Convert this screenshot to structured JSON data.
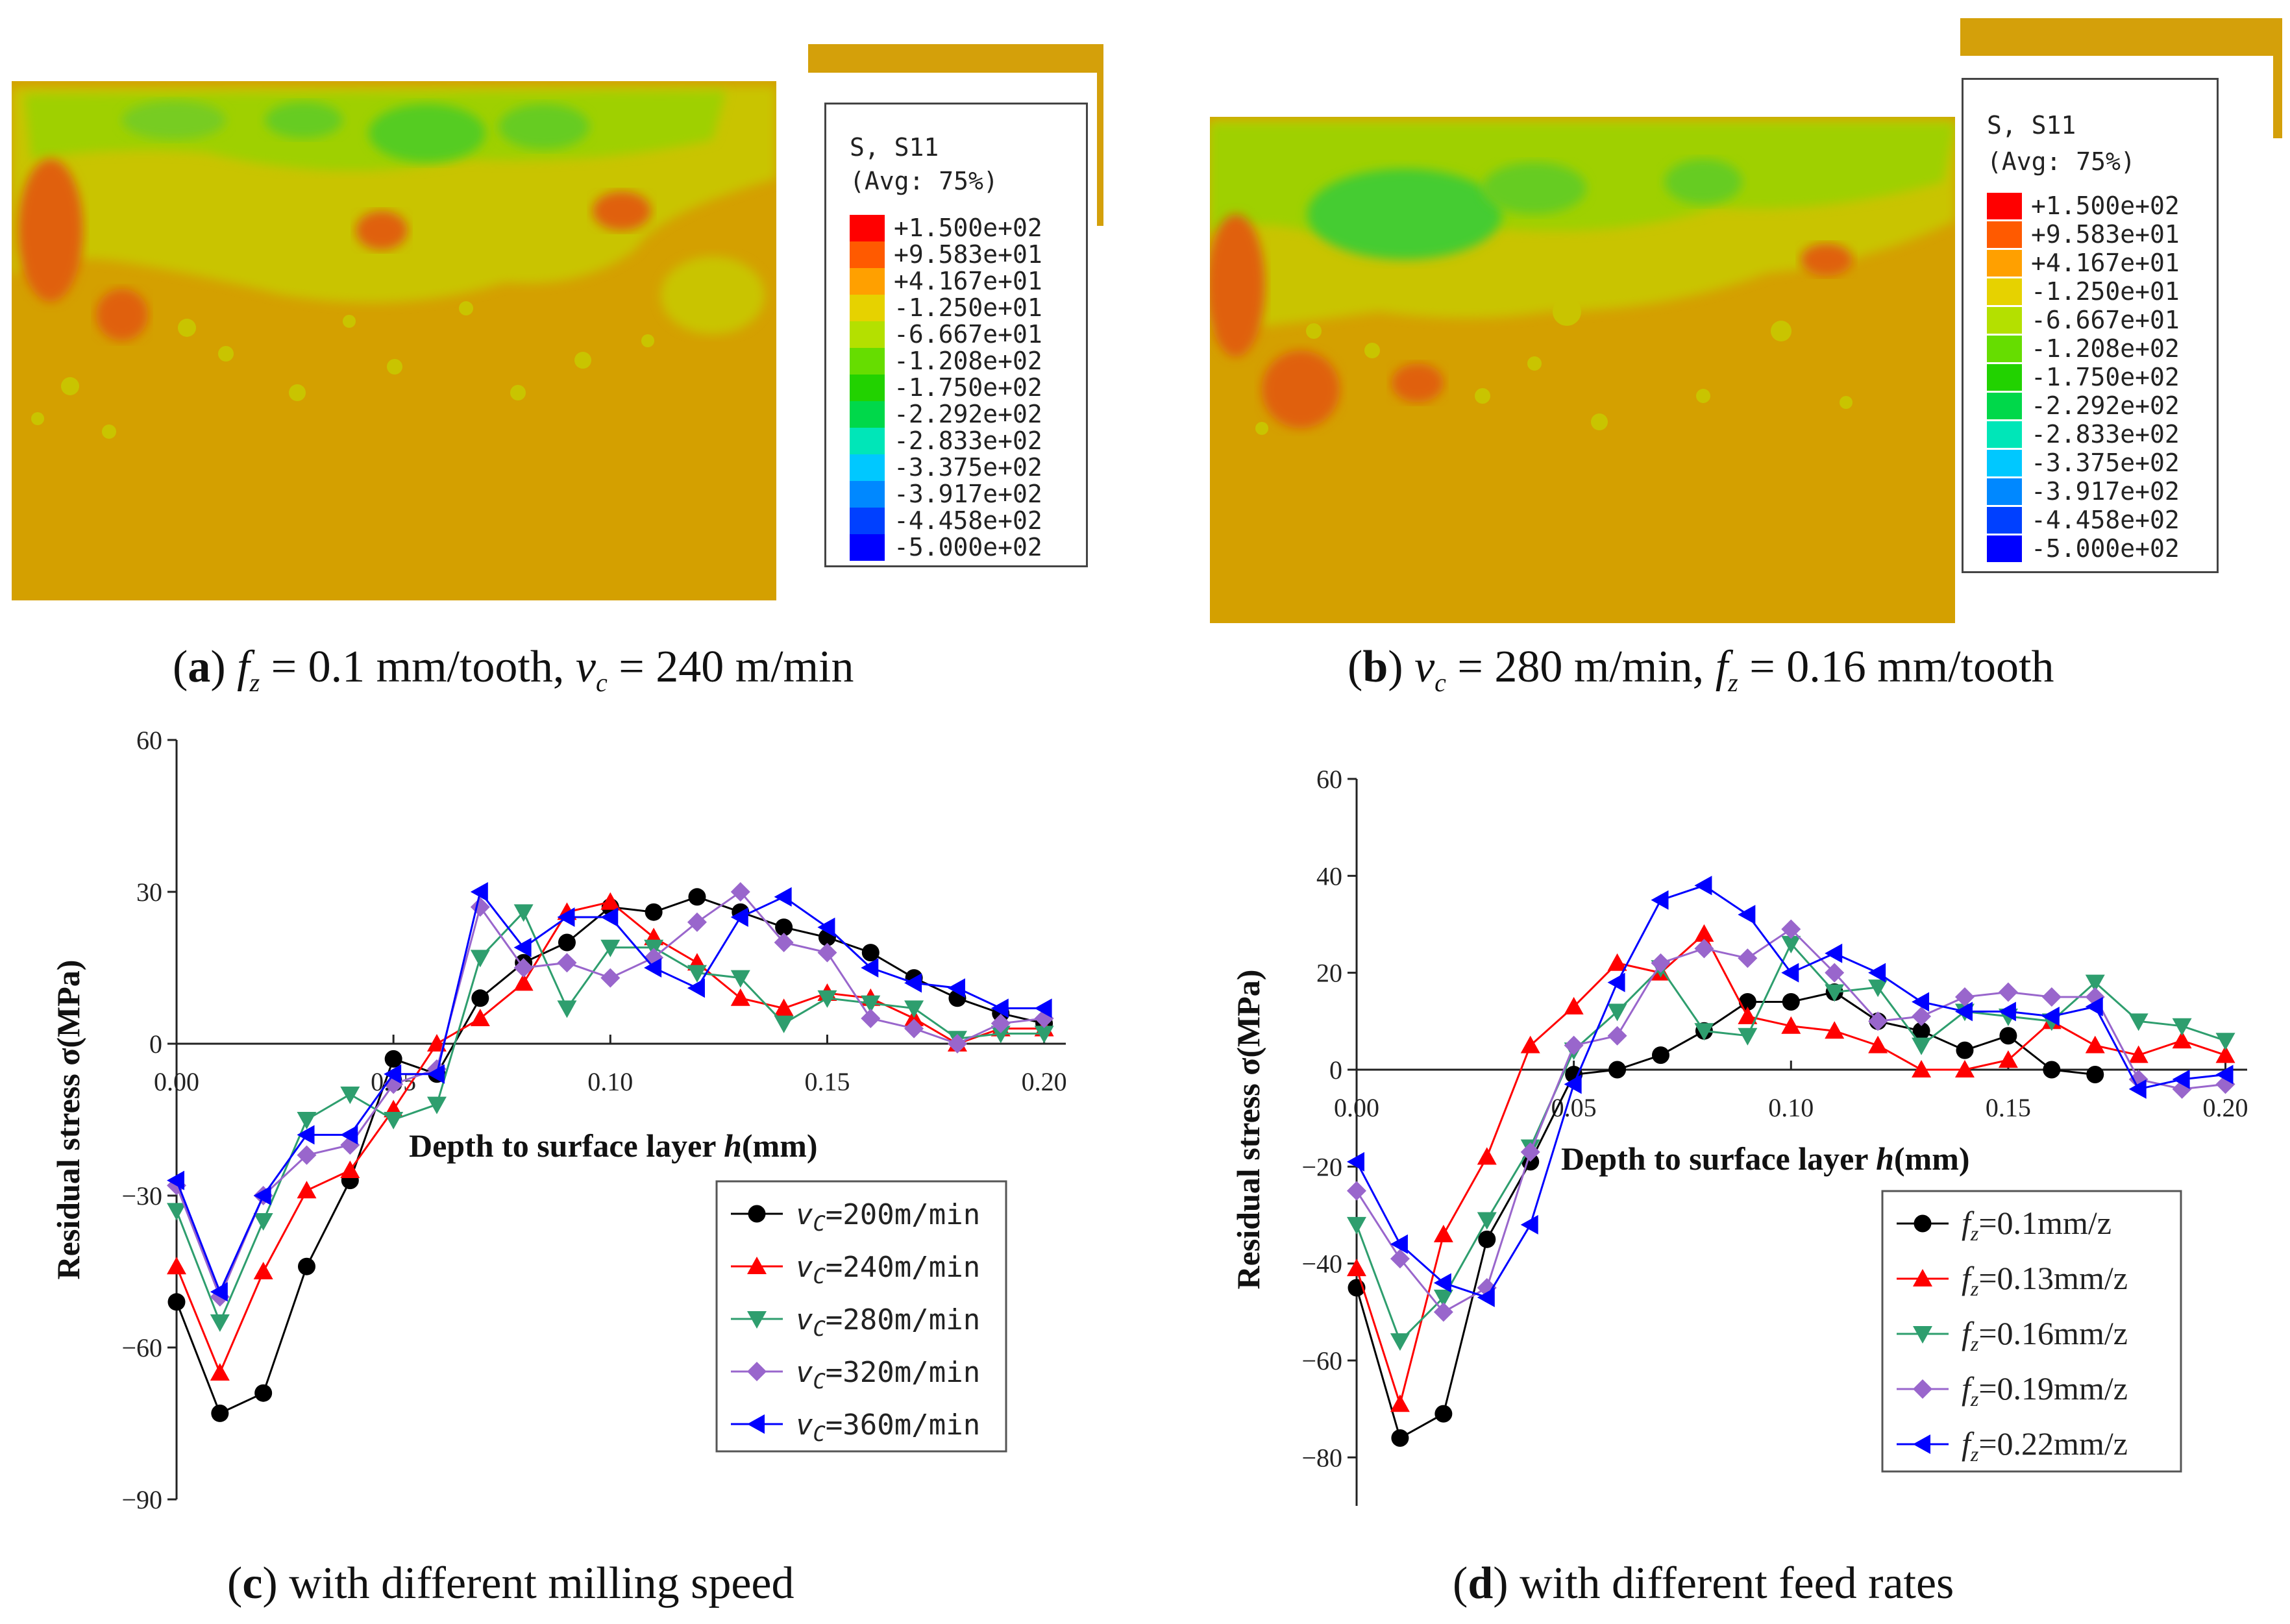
{
  "fem_panels": [
    {
      "id": "a",
      "legend": {
        "title_line1": "S, S11",
        "title_line2": "(Avg: 75%)",
        "levels": [
          "+1.500e+02",
          "+9.583e+01",
          "+4.167e+01",
          "-1.250e+01",
          "-6.667e+01",
          "-1.208e+02",
          "-1.750e+02",
          "-2.292e+02",
          "-2.833e+02",
          "-3.375e+02",
          "-3.917e+02",
          "-4.458e+02",
          "-5.000e+02"
        ]
      },
      "caption": {
        "letter": "a",
        "text_before": " ",
        "f": "f",
        "fsub": "z",
        "text1": " = 0.1 mm/tooth, ",
        "v": "v",
        "vsub": "c",
        "text2": " = 240 m/min"
      }
    },
    {
      "id": "b",
      "legend": {
        "title_line1": "S, S11",
        "title_line2": "(Avg: 75%)",
        "levels": [
          "+1.500e+02",
          "+9.583e+01",
          "+4.167e+01",
          "-1.250e+01",
          "-6.667e+01",
          "-1.208e+02",
          "-1.750e+02",
          "-2.292e+02",
          "-2.833e+02",
          "-3.375e+02",
          "-3.917e+02",
          "-4.458e+02",
          "-5.000e+02"
        ]
      },
      "caption": {
        "letter": "b",
        "v": "v",
        "vsub": "c",
        "text1": " = 280 m/min, ",
        "f": "f",
        "fsub": "z",
        "text2": " = 0.16 mm/tooth"
      }
    }
  ],
  "contour_colors": [
    "#ff0000",
    "#ff5a00",
    "#ffa000",
    "#e6d200",
    "#b4e000",
    "#66dd00",
    "#22d200",
    "#00d84a",
    "#00e6b8",
    "#00c8ff",
    "#0088ff",
    "#0040ff",
    "#0000ff"
  ],
  "captions_c_d": {
    "c": {
      "letter": "c",
      "text": " with different milling speed"
    },
    "d": {
      "letter": "d",
      "text": " with different feed rates"
    }
  },
  "chart_data": [
    {
      "type": "line",
      "panel": "c",
      "xlabel": "Depth to surface layer h(mm)",
      "xlabel_plain": "Depth to surface layer ",
      "xlabel_italic": "h",
      "xlabel_unit": "(mm)",
      "ylabel": "Residual stress σ(MPa)",
      "xlim": [
        0,
        0.205
      ],
      "ylim": [
        -90,
        60
      ],
      "xticks": [
        0.0,
        0.05,
        0.1,
        0.15,
        0.2
      ],
      "xtick_labels": [
        "0.00",
        "0.05",
        "0.10",
        "0.15",
        "0.20"
      ],
      "yticks": [
        60,
        30,
        0,
        -30,
        -60,
        -90
      ],
      "ytick_labels": [
        "60",
        "30",
        "0",
        "−30",
        "−60",
        "−90"
      ],
      "x": [
        0.0,
        0.01,
        0.02,
        0.03,
        0.04,
        0.05,
        0.06,
        0.07,
        0.08,
        0.09,
        0.1,
        0.11,
        0.12,
        0.13,
        0.14,
        0.15,
        0.16,
        0.17,
        0.18,
        0.19,
        0.2
      ],
      "series": [
        {
          "name": "vC=200m/min",
          "name_main": "v",
          "name_sub": "C",
          "name_rest": "=200m/min",
          "color": "#000000",
          "marker": "circle",
          "values": [
            -51,
            -73,
            -69,
            -44,
            -27,
            -3,
            -6,
            9,
            16,
            20,
            27,
            26,
            29,
            26,
            23,
            21,
            18,
            13,
            9,
            6,
            4
          ]
        },
        {
          "name": "vC=240m/min",
          "name_main": "v",
          "name_sub": "C",
          "name_rest": "=240m/min",
          "color": "#ff0000",
          "marker": "triangle-up",
          "values": [
            -44,
            -65,
            -45,
            -29,
            -25,
            -13,
            0,
            5,
            12,
            26,
            28,
            21,
            16,
            9,
            7,
            10,
            9,
            5,
            0,
            3,
            3
          ]
        },
        {
          "name": "vC=280m/min",
          "name_main": "v",
          "name_sub": "C",
          "name_rest": "=280m/min",
          "color": "#2e9e6e",
          "marker": "triangle-down",
          "values": [
            -33,
            -55,
            -35,
            -15,
            -10,
            -15,
            -12,
            17,
            26,
            7,
            19,
            19,
            14,
            13,
            4,
            9,
            8,
            7,
            1,
            2,
            2
          ]
        },
        {
          "name": "vC=320m/min",
          "name_main": "v",
          "name_sub": "C",
          "name_rest": "=320m/min",
          "color": "#9966cc",
          "marker": "diamond",
          "values": [
            -28,
            -50,
            -30,
            -22,
            -20,
            -8,
            -5,
            27,
            15,
            16,
            13,
            17,
            24,
            30,
            20,
            18,
            5,
            3,
            0,
            4,
            5
          ]
        },
        {
          "name": "vC=360m/min",
          "name_main": "v",
          "name_sub": "C",
          "name_rest": "=360m/min",
          "color": "#0000ff",
          "marker": "triangle-left",
          "values": [
            -27,
            -49,
            -30,
            -18,
            -18,
            -6,
            -6,
            30,
            19,
            25,
            25,
            15,
            11,
            25,
            29,
            23,
            15,
            12,
            11,
            7,
            7
          ]
        }
      ]
    },
    {
      "type": "line",
      "panel": "d",
      "xlabel": "Depth to surface layer h(mm)",
      "xlabel_plain": "Depth to surface layer  ",
      "xlabel_italic": "h",
      "xlabel_unit": "(mm)",
      "ylabel": "Residual stress σ(MPa)",
      "xlim": [
        0,
        0.205
      ],
      "ylim": [
        -90,
        60
      ],
      "xticks": [
        0.0,
        0.05,
        0.1,
        0.15,
        0.2
      ],
      "xtick_labels": [
        "0.00",
        "0.05",
        "0.10",
        "0.15",
        "0.20"
      ],
      "yticks": [
        60,
        40,
        20,
        0,
        -20,
        -40,
        -60,
        -80
      ],
      "ytick_labels": [
        "60",
        "40",
        "20",
        "0",
        "−20",
        "−40",
        "−60",
        "−80"
      ],
      "x": [
        0.0,
        0.01,
        0.02,
        0.03,
        0.04,
        0.05,
        0.06,
        0.07,
        0.08,
        0.09,
        0.1,
        0.11,
        0.12,
        0.13,
        0.14,
        0.15,
        0.16,
        0.17,
        0.18,
        0.19,
        0.2
      ],
      "series": [
        {
          "name": "fz=0.1mm/z",
          "name_main": "f",
          "name_sub": "z",
          "name_rest": "=0.1mm/z",
          "color": "#000000",
          "marker": "circle",
          "values": [
            -45,
            -76,
            -71,
            -35,
            -19,
            -1,
            0,
            3,
            8,
            14,
            14,
            16,
            10,
            8,
            4,
            7,
            0,
            -1,
            null,
            null,
            null
          ]
        },
        {
          "name": "fz=0.13mm/z",
          "name_main": "f",
          "name_sub": "z",
          "name_rest": "=0.13mm/z",
          "color": "#ff0000",
          "marker": "triangle-up",
          "values": [
            -41,
            -69,
            -34,
            -18,
            5,
            13,
            22,
            20,
            28,
            11,
            9,
            8,
            5,
            0,
            0,
            2,
            10,
            5,
            3,
            6,
            3
          ]
        },
        {
          "name": "fz=0.16mm/z",
          "name_main": "f",
          "name_sub": "z",
          "name_rest": "=0.16mm/z",
          "color": "#2e9e6e",
          "marker": "triangle-down",
          "values": [
            -32,
            -56,
            -47,
            -31,
            -16,
            4,
            12,
            21,
            8,
            7,
            26,
            16,
            17,
            5,
            12,
            11,
            10,
            18,
            10,
            9,
            6
          ]
        },
        {
          "name": "fz=0.19mm/z",
          "name_main": "f",
          "name_sub": "z",
          "name_rest": "=0.19mm/z",
          "color": "#9966cc",
          "marker": "diamond",
          "values": [
            -25,
            -39,
            -50,
            -45,
            -17,
            5,
            7,
            22,
            25,
            23,
            29,
            20,
            10,
            11,
            15,
            16,
            15,
            15,
            -2,
            -4,
            -3
          ]
        },
        {
          "name": "fz=0.22mm/z",
          "name_main": "f",
          "name_sub": "z",
          "name_rest": "=0.22mm/z",
          "color": "#0000ff",
          "marker": "triangle-left",
          "values": [
            -19,
            -36,
            -44,
            -47,
            -32,
            -3,
            18,
            35,
            38,
            32,
            20,
            24,
            20,
            14,
            12,
            12,
            11,
            13,
            -4,
            -2,
            -1
          ]
        }
      ]
    }
  ]
}
